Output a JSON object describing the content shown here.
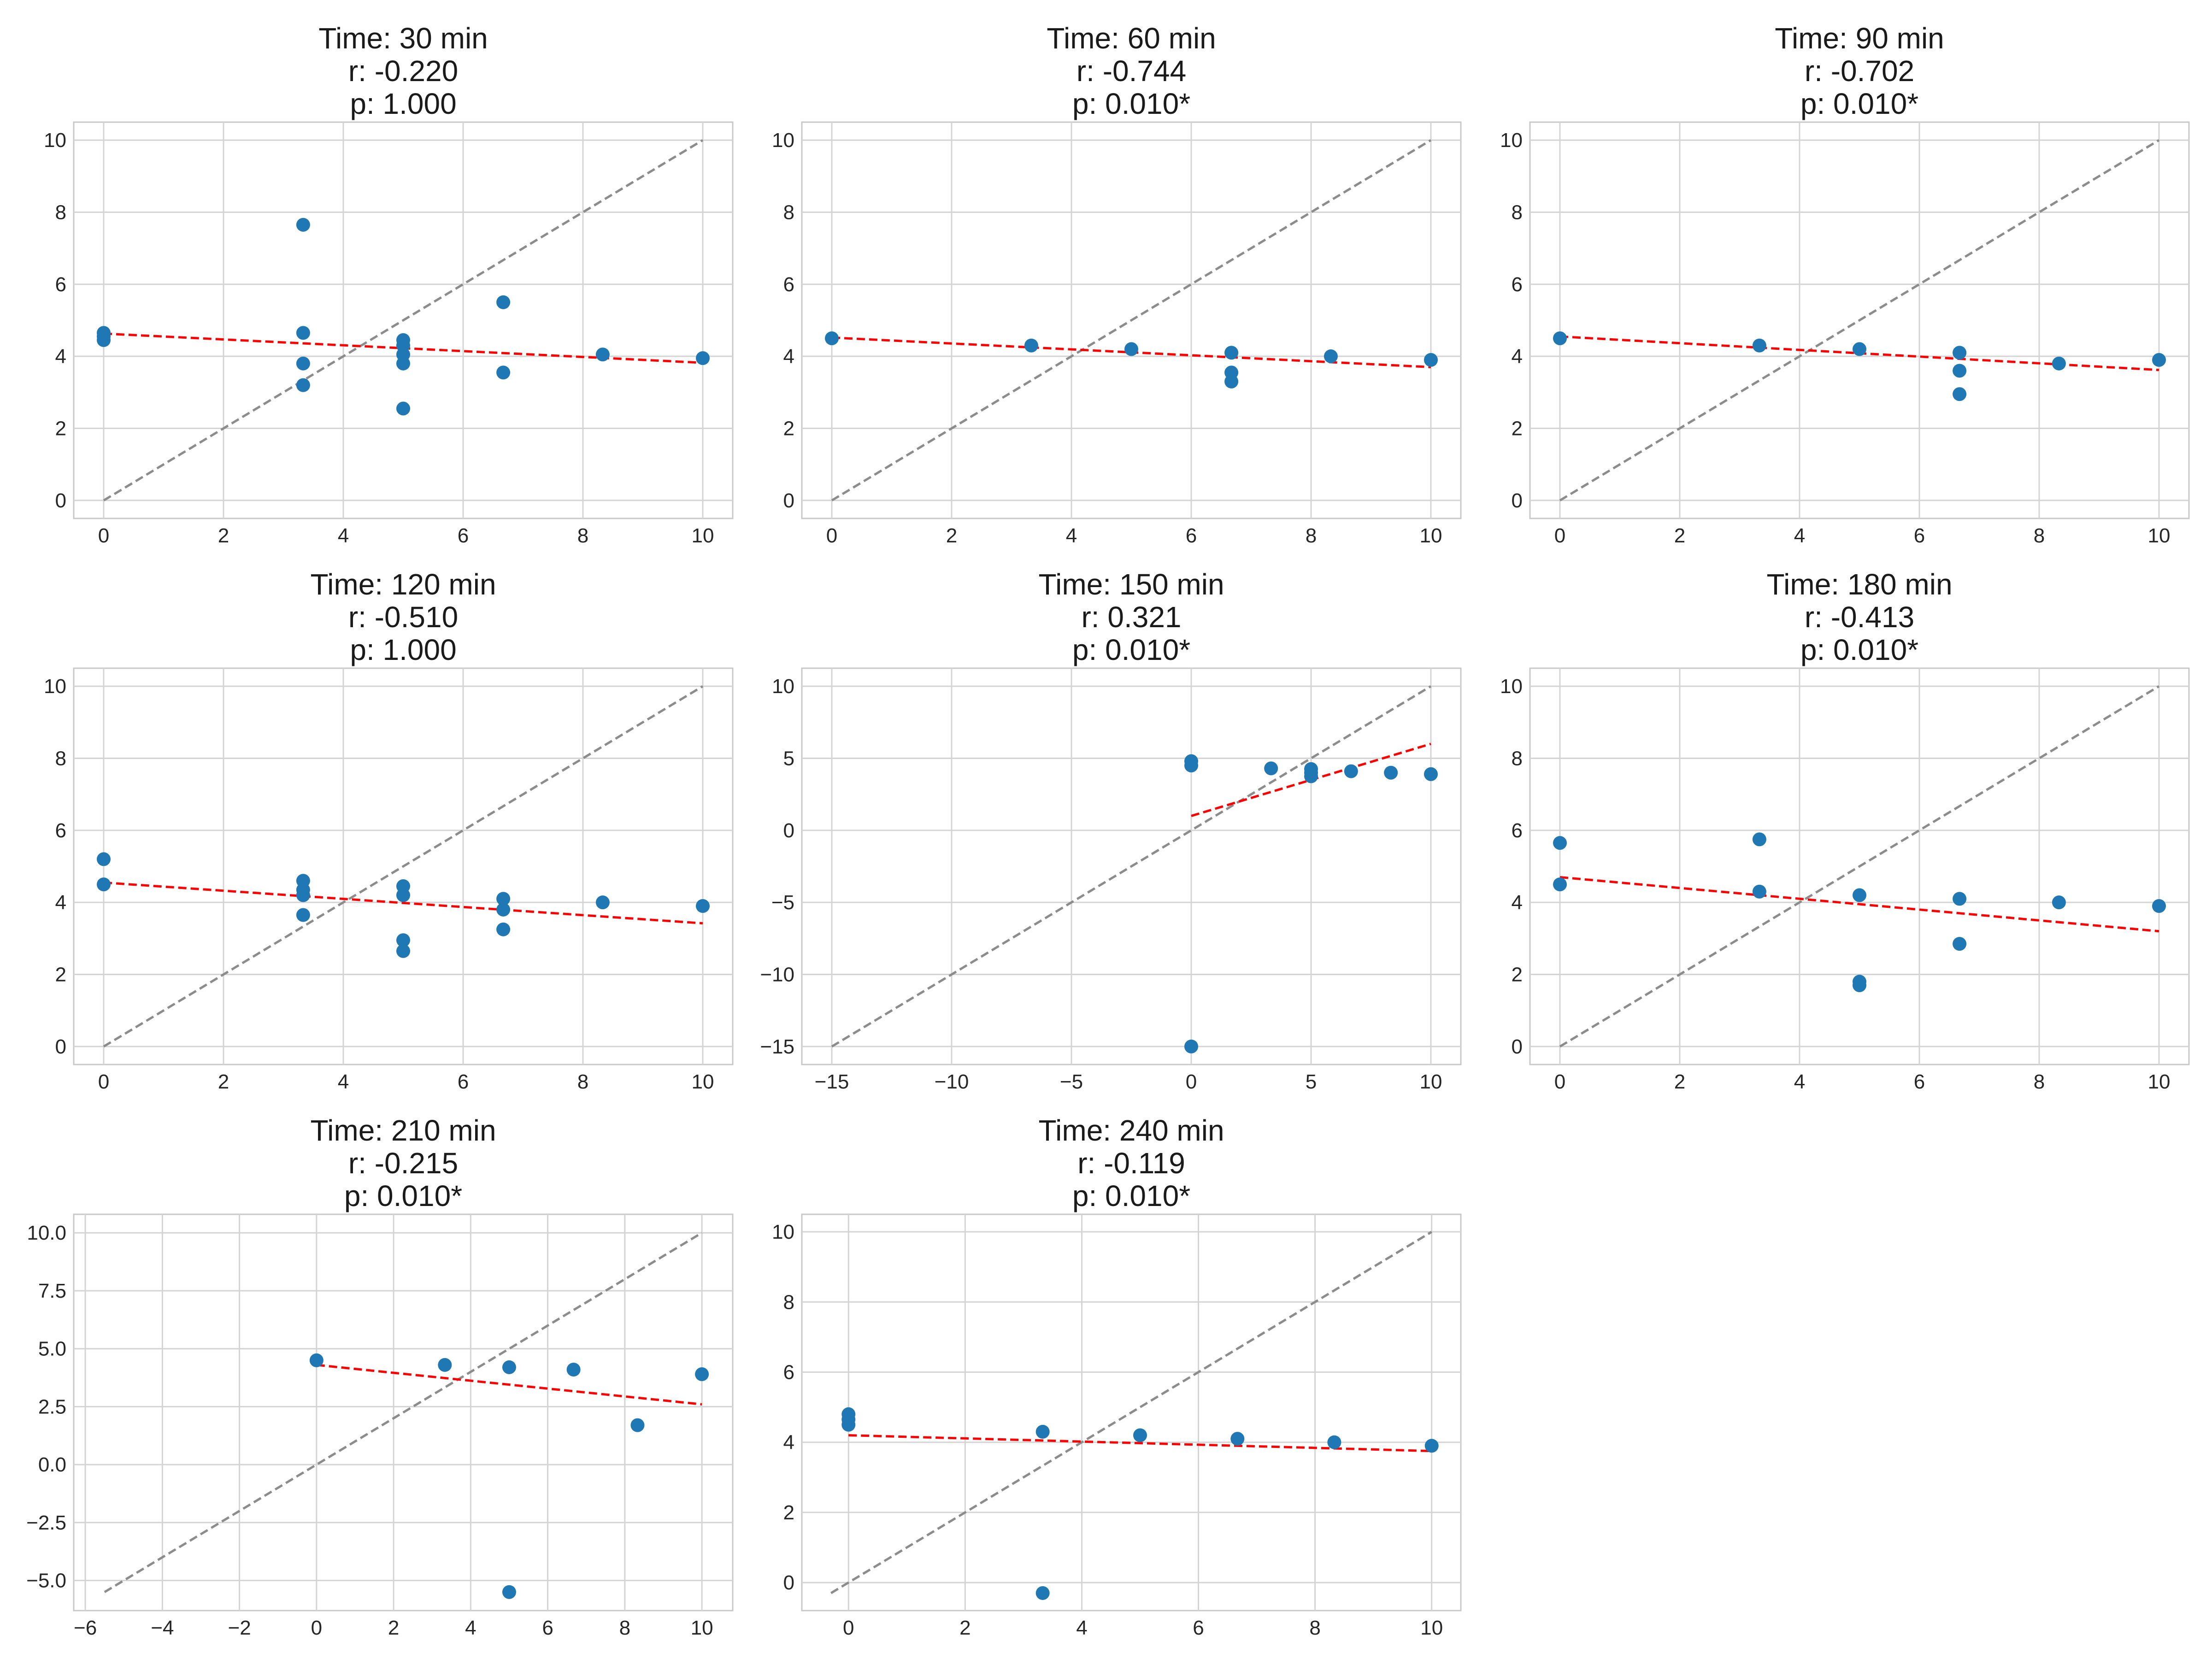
{
  "colors": {
    "points": "#1f77b4",
    "fit_line": "#ff0000",
    "identity_line": "#8c8c8c",
    "grid": "#d4d4d4",
    "frame": "#c8c8c8"
  },
  "chart_data": [
    {
      "type": "scatter",
      "title": [
        "Time: 30 min",
        "r: -0.220",
        "p: 1.000"
      ],
      "xlim": [
        -0.5,
        10.5
      ],
      "ylim": [
        -0.5,
        10.5
      ],
      "xticks": [
        0,
        2,
        4,
        6,
        8,
        10
      ],
      "xtick_labels": [
        "0",
        "2",
        "4",
        "6",
        "8",
        "10"
      ],
      "yticks": [
        0,
        2,
        4,
        6,
        8,
        10
      ],
      "ytick_labels": [
        "0",
        "2",
        "4",
        "6",
        "8",
        "10"
      ],
      "grid": true,
      "points": {
        "x": [
          0,
          0,
          0,
          3.33,
          3.33,
          3.33,
          3.33,
          5,
          5,
          5,
          5,
          5,
          6.67,
          6.67,
          8.33,
          10
        ],
        "y": [
          4.65,
          4.55,
          4.45,
          7.65,
          4.65,
          3.8,
          3.2,
          4.45,
          4.3,
          4.05,
          3.8,
          2.55,
          5.5,
          3.55,
          4.05,
          3.95
        ]
      },
      "fit_line": {
        "x": [
          0,
          10
        ],
        "y": [
          4.63,
          3.82
        ]
      },
      "identity_line": {
        "x": [
          0,
          10
        ],
        "y": [
          0,
          10
        ]
      }
    },
    {
      "type": "scatter",
      "title": [
        "Time: 60 min",
        "r: -0.744",
        "p: 0.010*"
      ],
      "xlim": [
        -0.5,
        10.5
      ],
      "ylim": [
        -0.5,
        10.5
      ],
      "xticks": [
        0,
        2,
        4,
        6,
        8,
        10
      ],
      "xtick_labels": [
        "0",
        "2",
        "4",
        "6",
        "8",
        "10"
      ],
      "yticks": [
        0,
        2,
        4,
        6,
        8,
        10
      ],
      "ytick_labels": [
        "0",
        "2",
        "4",
        "6",
        "8",
        "10"
      ],
      "grid": true,
      "points": {
        "x": [
          0,
          3.33,
          5,
          6.67,
          6.67,
          6.67,
          8.33,
          10
        ],
        "y": [
          4.5,
          4.3,
          4.2,
          4.1,
          3.55,
          3.3,
          4.0,
          3.9
        ]
      },
      "fit_line": {
        "x": [
          0,
          10
        ],
        "y": [
          4.52,
          3.7
        ]
      },
      "identity_line": {
        "x": [
          0,
          10
        ],
        "y": [
          0,
          10
        ]
      }
    },
    {
      "type": "scatter",
      "title": [
        "Time: 90 min",
        "r: -0.702",
        "p: 0.010*"
      ],
      "xlim": [
        -0.5,
        10.5
      ],
      "ylim": [
        -0.5,
        10.5
      ],
      "xticks": [
        0,
        2,
        4,
        6,
        8,
        10
      ],
      "xtick_labels": [
        "0",
        "2",
        "4",
        "6",
        "8",
        "10"
      ],
      "yticks": [
        0,
        2,
        4,
        6,
        8,
        10
      ],
      "ytick_labels": [
        "0",
        "2",
        "4",
        "6",
        "8",
        "10"
      ],
      "grid": true,
      "points": {
        "x": [
          0,
          3.33,
          5,
          6.67,
          6.67,
          6.67,
          8.33,
          10
        ],
        "y": [
          4.5,
          4.3,
          4.2,
          4.1,
          3.6,
          2.95,
          3.8,
          3.9
        ]
      },
      "fit_line": {
        "x": [
          0,
          10
        ],
        "y": [
          4.55,
          3.62
        ]
      },
      "identity_line": {
        "x": [
          0,
          10
        ],
        "y": [
          0,
          10
        ]
      }
    },
    {
      "type": "scatter",
      "title": [
        "Time: 120 min",
        "r: -0.510",
        "p: 1.000"
      ],
      "xlim": [
        -0.5,
        10.5
      ],
      "ylim": [
        -0.5,
        10.5
      ],
      "xticks": [
        0,
        2,
        4,
        6,
        8,
        10
      ],
      "xtick_labels": [
        "0",
        "2",
        "4",
        "6",
        "8",
        "10"
      ],
      "yticks": [
        0,
        2,
        4,
        6,
        8,
        10
      ],
      "ytick_labels": [
        "0",
        "2",
        "4",
        "6",
        "8",
        "10"
      ],
      "grid": true,
      "points": {
        "x": [
          0,
          0,
          3.33,
          3.33,
          3.33,
          3.33,
          5,
          5,
          5,
          5,
          6.67,
          6.67,
          6.67,
          8.33,
          10
        ],
        "y": [
          5.2,
          4.5,
          4.6,
          4.35,
          4.2,
          3.65,
          4.45,
          4.2,
          2.95,
          2.65,
          4.1,
          3.8,
          3.25,
          4.0,
          3.9
        ]
      },
      "fit_line": {
        "x": [
          0,
          10
        ],
        "y": [
          4.55,
          3.42
        ]
      },
      "identity_line": {
        "x": [
          0,
          10
        ],
        "y": [
          0,
          10
        ]
      }
    },
    {
      "type": "scatter",
      "title": [
        "Time: 150 min",
        "r: 0.321",
        "p: 0.010*"
      ],
      "xlim": [
        -16.25,
        11.25
      ],
      "ylim": [
        -16.25,
        11.25
      ],
      "xticks": [
        -15,
        -10,
        -5,
        0,
        5,
        10
      ],
      "xtick_labels": [
        "−15",
        "−10",
        "−5",
        "0",
        "5",
        "10"
      ],
      "yticks": [
        -15,
        -10,
        -5,
        0,
        5,
        10
      ],
      "ytick_labels": [
        "−15",
        "−10",
        "−5",
        "0",
        "5",
        "10"
      ],
      "grid": true,
      "points": {
        "x": [
          0,
          0,
          0,
          3.33,
          5,
          5,
          5,
          6.67,
          8.33,
          10
        ],
        "y": [
          4.8,
          4.5,
          -15,
          4.3,
          4.25,
          4.0,
          3.75,
          4.1,
          4.0,
          3.9
        ]
      },
      "fit_line": {
        "x": [
          0,
          10
        ],
        "y": [
          1.0,
          6.0
        ]
      },
      "identity_line": {
        "x": [
          -15,
          10
        ],
        "y": [
          -15,
          10
        ]
      }
    },
    {
      "type": "scatter",
      "title": [
        "Time: 180 min",
        "r: -0.413",
        "p: 0.010*"
      ],
      "xlim": [
        -0.5,
        10.5
      ],
      "ylim": [
        -0.5,
        10.5
      ],
      "xticks": [
        0,
        2,
        4,
        6,
        8,
        10
      ],
      "xtick_labels": [
        "0",
        "2",
        "4",
        "6",
        "8",
        "10"
      ],
      "yticks": [
        0,
        2,
        4,
        6,
        8,
        10
      ],
      "ytick_labels": [
        "0",
        "2",
        "4",
        "6",
        "8",
        "10"
      ],
      "grid": true,
      "points": {
        "x": [
          0,
          0,
          3.33,
          3.33,
          5,
          5,
          5,
          6.67,
          6.67,
          8.33,
          10
        ],
        "y": [
          5.65,
          4.5,
          5.75,
          4.3,
          4.2,
          1.8,
          1.7,
          4.1,
          2.85,
          4.0,
          3.9
        ]
      },
      "fit_line": {
        "x": [
          0,
          10
        ],
        "y": [
          4.7,
          3.2
        ]
      },
      "identity_line": {
        "x": [
          0,
          10
        ],
        "y": [
          0,
          10
        ]
      }
    },
    {
      "type": "scatter",
      "title": [
        "Time: 210 min",
        "r: -0.215",
        "p: 0.010*"
      ],
      "xlim": [
        -6.3,
        10.8
      ],
      "ylim": [
        -6.3,
        10.8
      ],
      "xticks": [
        -6,
        -4,
        -2,
        0,
        2,
        4,
        6,
        8,
        10
      ],
      "xtick_labels": [
        "−6",
        "−4",
        "−2",
        "0",
        "2",
        "4",
        "6",
        "8",
        "10"
      ],
      "yticks": [
        -5,
        -2.5,
        0,
        2.5,
        5,
        7.5,
        10
      ],
      "ytick_labels": [
        "−5.0",
        "−2.5",
        "0.0",
        "2.5",
        "5.0",
        "7.5",
        "10.0"
      ],
      "grid": true,
      "points": {
        "x": [
          0,
          3.33,
          5,
          5,
          6.67,
          8.33,
          10
        ],
        "y": [
          4.5,
          4.3,
          4.2,
          -5.5,
          4.1,
          1.7,
          3.9
        ]
      },
      "fit_line": {
        "x": [
          0,
          10
        ],
        "y": [
          4.3,
          2.6
        ]
      },
      "identity_line": {
        "x": [
          -5.5,
          10
        ],
        "y": [
          -5.5,
          10
        ]
      }
    },
    {
      "type": "scatter",
      "title": [
        "Time: 240 min",
        "r: -0.119",
        "p: 0.010*"
      ],
      "xlim": [
        -0.8,
        10.5
      ],
      "ylim": [
        -0.8,
        10.5
      ],
      "xticks": [
        0,
        2,
        4,
        6,
        8,
        10
      ],
      "xtick_labels": [
        "0",
        "2",
        "4",
        "6",
        "8",
        "10"
      ],
      "yticks": [
        0,
        2,
        4,
        6,
        8,
        10
      ],
      "ytick_labels": [
        "0",
        "2",
        "4",
        "6",
        "8",
        "10"
      ],
      "grid": true,
      "points": {
        "x": [
          0,
          0,
          0,
          3.33,
          3.33,
          5,
          6.67,
          8.33,
          10
        ],
        "y": [
          4.8,
          4.65,
          4.5,
          4.3,
          -0.3,
          4.2,
          4.1,
          4.0,
          3.9
        ]
      },
      "fit_line": {
        "x": [
          0,
          10
        ],
        "y": [
          4.2,
          3.75
        ]
      },
      "identity_line": {
        "x": [
          -0.3,
          10
        ],
        "y": [
          -0.3,
          10
        ]
      }
    }
  ]
}
